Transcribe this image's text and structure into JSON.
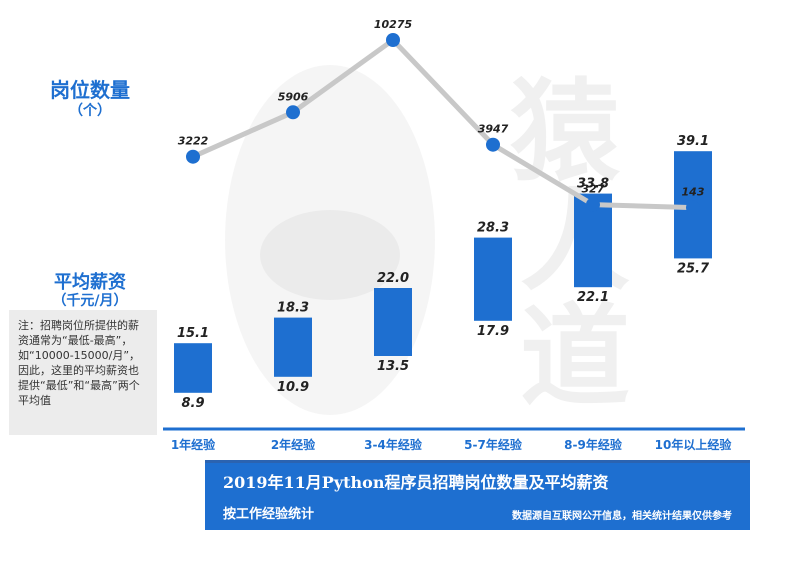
{
  "labels": {
    "count_title": "岗位数量",
    "count_unit": "（个）",
    "salary_title": "平均薪资",
    "salary_unit": "（千元/月）"
  },
  "note": "注：招聘岗位所提供的薪资通常为“最低-最高”，如“10000-15000/月”，因此，这里的平均薪资也提供“最低”和“最高”两个平均值",
  "footer": {
    "title": "2019年11月Python程序员招聘岗位数量及平均薪资",
    "subtitle": "按工作经验统计",
    "source": "数据源自互联网公开信息，相关统计结果仅供参考"
  },
  "colors": {
    "accent": "#1e6fd0",
    "line": "#c8c8c8",
    "footer_bg": "#1e6fd0",
    "note_bg": "#ececec"
  },
  "watermark": {
    "text_1": "猿",
    "text_2": "人",
    "text_3": "道"
  },
  "chart_data": {
    "type": "bar",
    "categories": [
      "1年经验",
      "2年经验",
      "3-4年经验",
      "5-7年经验",
      "8-9年经验",
      "10年以上经验"
    ],
    "series": [
      {
        "name": "岗位数量",
        "type": "line",
        "values": [
          3222,
          5906,
          10275,
          3947,
          327,
          143
        ]
      },
      {
        "name": "平均薪资（最低）",
        "type": "range-low",
        "values": [
          8.9,
          10.9,
          13.5,
          17.9,
          22.1,
          25.7
        ]
      },
      {
        "name": "平均薪资（最高）",
        "type": "range-high",
        "values": [
          15.1,
          18.3,
          22.0,
          28.3,
          33.8,
          39.1
        ]
      }
    ],
    "title": "2019年11月Python程序员招聘岗位数量及平均薪资",
    "subtitle": "按工作经验统计",
    "xlabel": "",
    "ylabel": ""
  }
}
